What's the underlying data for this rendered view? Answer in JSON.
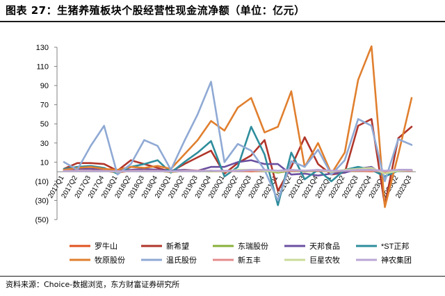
{
  "header": {
    "title": "图表 27：生猪养殖板块个股经营性现金流净额（单位：亿元）"
  },
  "footer": {
    "source": "资料来源：Choice-数据浏览，东方财富证券研究所"
  },
  "chart_data": {
    "type": "line",
    "title": "生猪养殖板块个股经营性现金流净额",
    "unit": "亿元",
    "xlabel": "",
    "ylabel": "",
    "ylim": [
      -50,
      130
    ],
    "yticks": [
      130,
      110,
      90,
      70,
      50,
      30,
      10,
      -10,
      -30,
      -50
    ],
    "ytick_labels": [
      "130",
      "110",
      "90",
      "70",
      "50",
      "30",
      "10",
      "(10)",
      "(30)",
      "(50)"
    ],
    "grid": false,
    "legend_position": "bottom",
    "categories": [
      "2017Q1",
      "2017Q2",
      "2017Q3",
      "2017Q4",
      "2018Q1",
      "2018Q2",
      "2018Q3",
      "2018Q4",
      "2019Q1",
      "2019Q2",
      "2019Q3",
      "2019Q4",
      "2020Q1",
      "2020Q2",
      "2020Q3",
      "2020Q4",
      "2021Q1",
      "2021Q2",
      "2021Q3",
      "2021Q4",
      "2022Q1",
      "2022Q2",
      "2022Q3",
      "2022Q4",
      "2023Q1",
      "2023Q2",
      "2023Q3"
    ],
    "tick_labels": [
      "2017Q1",
      "2017Q2",
      "2017Q3",
      "2017Q4",
      "2018Q1",
      "2018Q2",
      "2018Q3",
      "2018Q4",
      "2019Q1",
      "2019Q2",
      "2019Q3",
      "2019Q4",
      "2020Q1",
      "2020Q2",
      "2020Q3",
      "2020Q4",
      "2021Q1",
      "2021Q2",
      "2021Q3",
      "2021Q4",
      "2022Q1",
      "2022Q2",
      "2022Q3",
      "2022Q4",
      "2023Q1",
      "2023Q2",
      "2023Q3"
    ],
    "series": [
      {
        "name": "罗牛山",
        "color": "#e0531f",
        "values": [
          1,
          1,
          0.5,
          1,
          -1,
          1,
          0.5,
          1,
          -0.5,
          1,
          0.5,
          1,
          0.5,
          1,
          0.5,
          1,
          -0.5,
          1,
          0.5,
          1,
          0.5,
          0.5,
          1,
          0.5,
          0.5,
          1,
          1
        ]
      },
      {
        "name": "新希望",
        "color": "#b0352a",
        "values": [
          3,
          9,
          9,
          8,
          1,
          12,
          8,
          4,
          0,
          8,
          15,
          22,
          -2,
          9,
          17,
          33,
          -20,
          5,
          36,
          8,
          -3,
          -1,
          48,
          55,
          -35,
          35,
          47
        ]
      },
      {
        "name": "东瑞股份",
        "color": "#8ab03a",
        "values": [
          0.5,
          0.5,
          0.5,
          0.5,
          0,
          0.5,
          0.5,
          0.5,
          0,
          0.5,
          0.5,
          0.5,
          0.5,
          1,
          1,
          1,
          -1,
          1,
          0.5,
          1,
          0,
          0.5,
          1,
          1,
          -1,
          1,
          1
        ]
      },
      {
        "name": "天邦食品",
        "color": "#6a4fa0",
        "values": [
          2,
          3,
          3,
          2,
          1,
          2,
          3,
          2,
          1,
          2,
          1,
          5,
          5,
          10,
          12,
          8,
          8,
          -3,
          -2,
          -4,
          -2,
          -1,
          3,
          5,
          -5,
          2,
          2
        ]
      },
      {
        "name": "*ST正邦",
        "color": "#2e8d9c",
        "values": [
          3,
          5,
          6,
          4,
          -2,
          5,
          8,
          12,
          -1,
          10,
          20,
          32,
          -5,
          5,
          47,
          18,
          -35,
          20,
          -8,
          2,
          -10,
          2,
          5,
          2,
          -5,
          1,
          1
        ]
      },
      {
        "name": "牧原股份",
        "color": "#e07f2e",
        "values": [
          2,
          4,
          5,
          3,
          2,
          5,
          4,
          6,
          3,
          18,
          33,
          53,
          43,
          67,
          77,
          41,
          47,
          84,
          5,
          30,
          -2,
          20,
          96,
          131,
          -37,
          18,
          77
        ]
      },
      {
        "name": "温氏股份",
        "color": "#8fa9d4",
        "values": [
          10,
          2,
          27,
          48,
          -3,
          8,
          33,
          27,
          2,
          32,
          60,
          94,
          10,
          29,
          22,
          2,
          -30,
          11,
          5,
          23,
          -3,
          12,
          55,
          48,
          -10,
          34,
          28
        ]
      },
      {
        "name": "新五丰",
        "color": "#e48c8c",
        "values": [
          1,
          1,
          1,
          1,
          0,
          1,
          1,
          1,
          0,
          1,
          1,
          1,
          0,
          1,
          1,
          1,
          0,
          1,
          1,
          1,
          0,
          1,
          1,
          1,
          0,
          1,
          1
        ]
      },
      {
        "name": "巨星农牧",
        "color": "#cadb9a",
        "values": [
          0.5,
          0.5,
          0.5,
          0.5,
          0,
          0.5,
          0.5,
          0.5,
          0,
          0.5,
          0.5,
          1,
          0.5,
          2,
          2,
          1,
          0,
          2,
          1,
          2,
          0,
          2,
          3,
          4,
          -2,
          1,
          2
        ]
      },
      {
        "name": "神农集团",
        "color": "#b9a6d6",
        "values": [
          0.5,
          0.5,
          0.5,
          0.5,
          0.5,
          0.5,
          0.5,
          0.5,
          0.5,
          0.5,
          0.5,
          1,
          1,
          1,
          2,
          2,
          1,
          2,
          1,
          2,
          1,
          1,
          2,
          2,
          1,
          2,
          2
        ]
      }
    ]
  }
}
